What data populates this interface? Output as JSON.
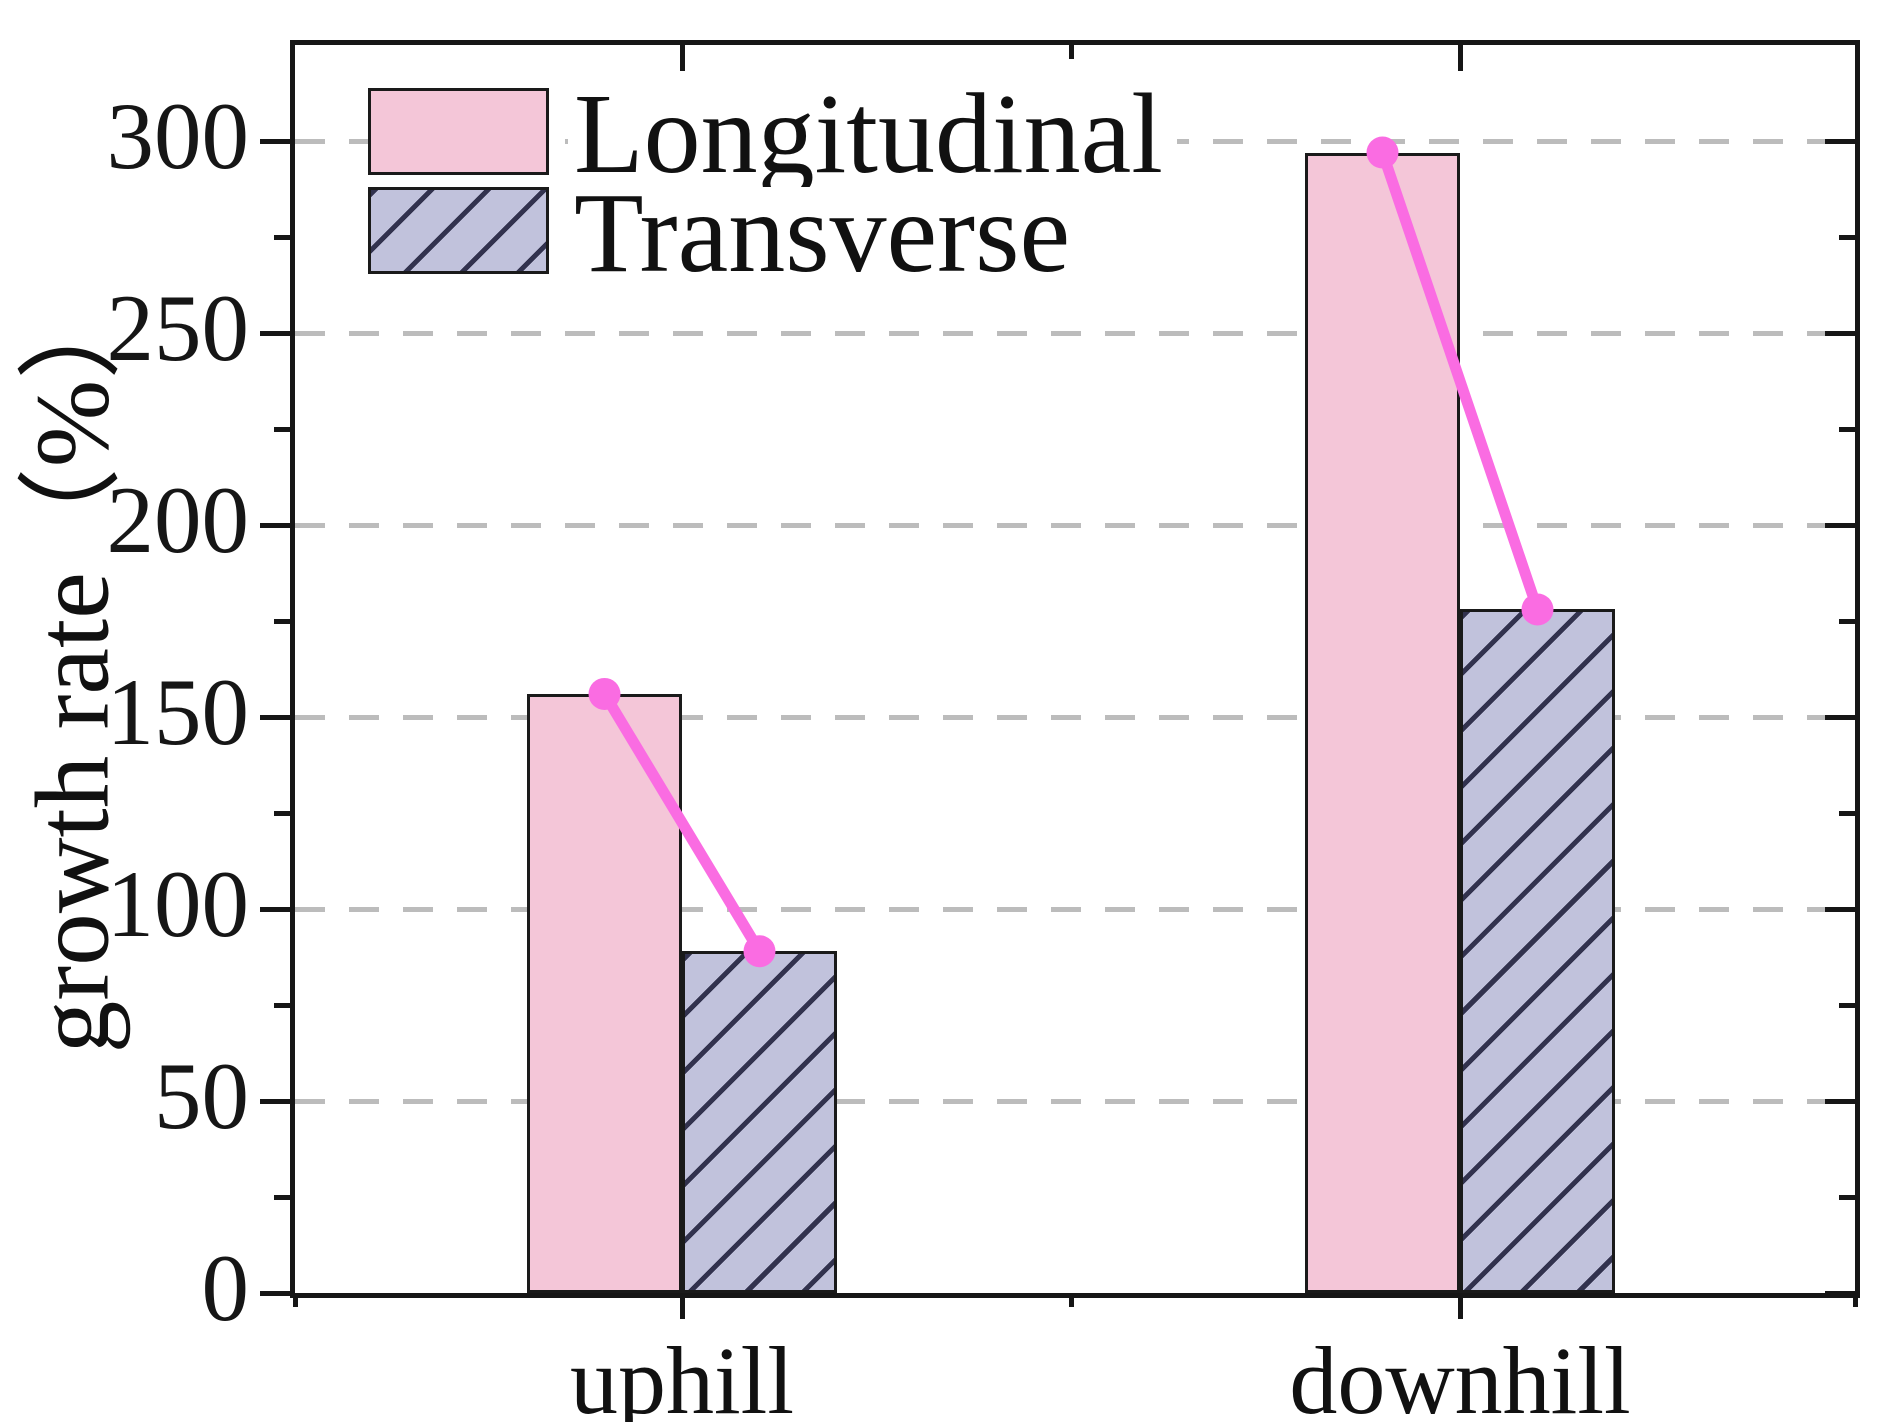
{
  "chart_data": {
    "type": "bar",
    "title": "",
    "categories": [
      "uphill",
      "downhill"
    ],
    "series": [
      {
        "name": "Longitudinal",
        "values": [
          156,
          297
        ],
        "fill": "#f4c6d8",
        "hatch": "none"
      },
      {
        "name": "Transverse",
        "values": [
          89,
          178
        ],
        "fill": "#c1c2dc",
        "hatch": "diagonal-forward-slash"
      }
    ],
    "overlay_line": {
      "type": "line",
      "marker": "circle",
      "color": "#fa6ce2",
      "segments": [
        {
          "category": "uphill",
          "from_value": 156,
          "to_value": 89
        },
        {
          "category": "downhill",
          "from_value": 297,
          "to_value": 178
        }
      ]
    },
    "xlabel": "",
    "ylabel": "growth rate（%）",
    "ylim": [
      0,
      325
    ],
    "yticks": [
      0,
      50,
      100,
      150,
      200,
      250,
      300
    ],
    "minor_ytick_step": 25,
    "grid": {
      "horizontal": true,
      "style": "dashed",
      "color": "#bcbcbc"
    },
    "legend": {
      "position": "top-left",
      "entries": [
        "Longitudinal",
        "Transverse"
      ]
    }
  },
  "styles": {
    "bar_border": "#1a1a1a",
    "hatch_line_color": "#32324e",
    "line_color": "#fa6ce2",
    "axis_color": "#161616",
    "grid_color": "#bcbcbc",
    "text_color": "#111111",
    "background": "#ffffff"
  }
}
